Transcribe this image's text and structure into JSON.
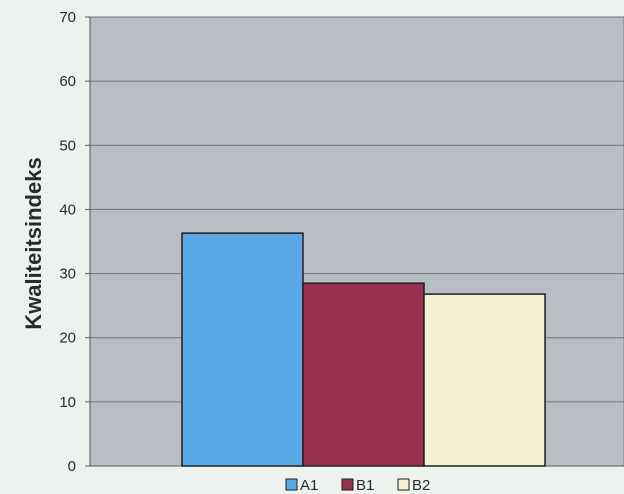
{
  "chart_data": {
    "type": "bar",
    "ylabel": "Kwaliteitsindeks",
    "ylim": [
      0,
      70
    ],
    "yticks": [
      0,
      10,
      20,
      30,
      40,
      50,
      60,
      70
    ],
    "grid": true,
    "legend_position": "bottom",
    "plot_background": "#b9bec4",
    "series": [
      {
        "name": "A1",
        "values": [
          36.3
        ],
        "color": "#5aa8e6"
      },
      {
        "name": "B1",
        "values": [
          28.5
        ],
        "color": "#98304f"
      },
      {
        "name": "B2",
        "values": [
          26.8
        ],
        "color": "#f6f1d3"
      }
    ]
  }
}
